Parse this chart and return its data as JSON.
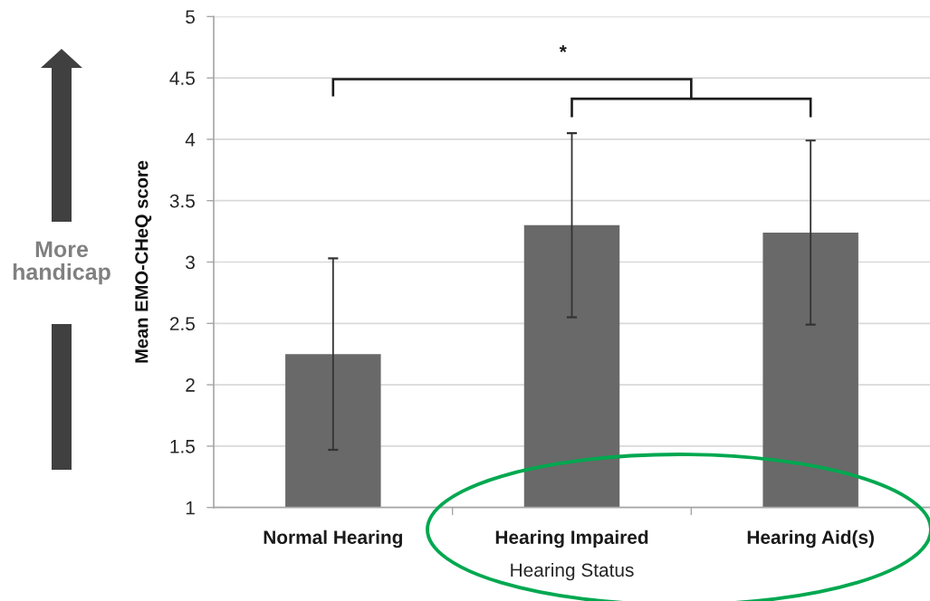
{
  "chart_data": {
    "type": "bar",
    "categories": [
      "Normal Hearing",
      "Hearing Impaired",
      "Hearing Aid(s)"
    ],
    "values": [
      2.25,
      3.3,
      3.24
    ],
    "errors": [
      0.78,
      0.75,
      0.75
    ],
    "color": "#696969",
    "xlabel": "Hearing Status",
    "ylabel": "Mean EMO-CHeQ score",
    "ylim": [
      1,
      5
    ],
    "yticks": [
      1,
      1.5,
      2,
      2.5,
      3,
      3.5,
      4,
      4.5,
      5
    ],
    "grid": "y",
    "annotations": [
      "*",
      "More\nhandicap"
    ]
  }
}
